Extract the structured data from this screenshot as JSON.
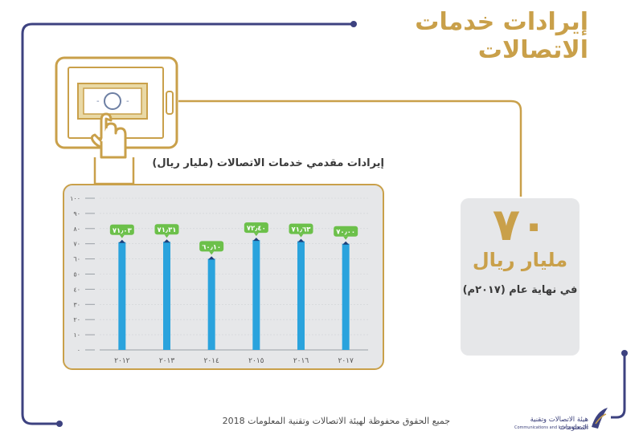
{
  "title": "إيرادات خدمات الاتصالات",
  "chart_caption": "إيرادات مقدمي خدمات الاتصالات (مليار ريال)",
  "stat": {
    "number": "٧٠",
    "unit": "مليار ريال",
    "subtitle": "في نهاية عام (٢٠١٧م)"
  },
  "footer": "جميع الحقوق محفوظة لهيئة الاتصالات وتقنية المعلومات 2018",
  "logo": {
    "arabic": "هيئة الاتصالات وتقنية المعلومات",
    "english": "Communications and Information Technology Commission"
  },
  "colors": {
    "accent_gold": "#c9a04a",
    "line_navy": "#3d4280",
    "bar_blue": "#2aa3dd",
    "label_green": "#6cc04a",
    "panel_gray": "#e6e7e9"
  },
  "icons": [
    "tablet-icon",
    "banknote-icon",
    "hand-pointer-icon",
    "cash-stack-icon",
    "logo-icon"
  ],
  "chart_data": {
    "type": "bar",
    "categories": [
      "٢٠١٢",
      "٢٠١٣",
      "٢٠١٤",
      "٢٠١٥",
      "٢٠١٦",
      "٢٠١٧"
    ],
    "values": [
      71.03,
      71.31,
      60.1,
      72.4,
      71.63,
      70.0
    ],
    "data_labels": [
      "٧١٫٠٣",
      "٧١٫٣١",
      "٦٠٫١٠",
      "٧٢٫٤٠",
      "٧١٫٦٣",
      "٧٠٫٠٠"
    ],
    "y_ticks": [
      0,
      10,
      20,
      30,
      40,
      50,
      60,
      70,
      80,
      90,
      100
    ],
    "y_tick_labels": [
      "٠",
      "١٠",
      "٢٠",
      "٣٠",
      "٤٠",
      "٥٠",
      "٦٠",
      "٧٠",
      "٨٠",
      "٩٠",
      "١٠٠"
    ],
    "ylim": [
      0,
      100
    ],
    "title": "إيرادات مقدمي خدمات الاتصالات (مليار ريال)",
    "xlabel": "",
    "ylabel": "",
    "grid": true
  }
}
